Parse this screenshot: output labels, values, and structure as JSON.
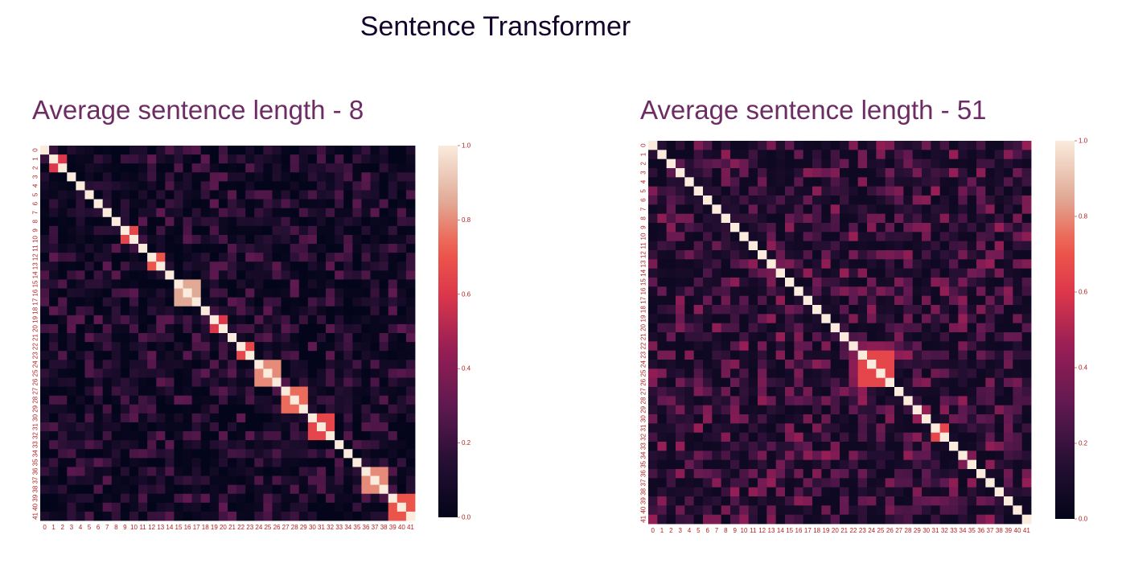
{
  "title": "Sentence Transformer",
  "chart_data": [
    {
      "type": "heatmap",
      "title": "Average sentence length - 8",
      "x_ticks": [
        "0",
        "1",
        "2",
        "3",
        "4",
        "5",
        "6",
        "7",
        "8",
        "9",
        "10",
        "11",
        "12",
        "13",
        "14",
        "15",
        "16",
        "17",
        "18",
        "19",
        "20",
        "21",
        "22",
        "23",
        "24",
        "25",
        "26",
        "27",
        "28",
        "29",
        "30",
        "31",
        "32",
        "33",
        "34",
        "35",
        "36",
        "37",
        "38",
        "39",
        "40",
        "41"
      ],
      "y_ticks": [
        "0",
        "1",
        "2",
        "3",
        "4",
        "5",
        "6",
        "7",
        "8",
        "9",
        "10",
        "11",
        "12",
        "13",
        "14",
        "15",
        "16",
        "17",
        "18",
        "19",
        "20",
        "21",
        "22",
        "23",
        "24",
        "25",
        "26",
        "27",
        "28",
        "29",
        "30",
        "31",
        "32",
        "33",
        "34",
        "35",
        "36",
        "37",
        "38",
        "39",
        "40",
        "41"
      ],
      "colorbar": {
        "min": 0.0,
        "max": 1.0,
        "ticks": [
          "0.0",
          "0.2",
          "0.4",
          "0.6",
          "0.8",
          "1.0"
        ]
      },
      "colormap": "rocket",
      "diagonal": 1.0,
      "off_diagonal_range": [
        0.0,
        0.3
      ],
      "high_similarity_blocks": [
        {
          "rows": [
            1,
            2
          ],
          "value": 0.6
        },
        {
          "rows": [
            9,
            10
          ],
          "value": 0.65
        },
        {
          "rows": [
            12,
            13
          ],
          "value": 0.7
        },
        {
          "rows": [
            15,
            17
          ],
          "value": 0.85
        },
        {
          "rows": [
            19,
            20
          ],
          "value": 0.6
        },
        {
          "rows": [
            22,
            23
          ],
          "value": 0.65
        },
        {
          "rows": [
            24,
            26
          ],
          "value": 0.8
        },
        {
          "rows": [
            27,
            29
          ],
          "value": 0.75
        },
        {
          "rows": [
            30,
            32
          ],
          "value": 0.65
        },
        {
          "rows": [
            36,
            38
          ],
          "value": 0.8
        },
        {
          "rows": [
            39,
            41
          ],
          "value": 0.7
        }
      ]
    },
    {
      "type": "heatmap",
      "title": "Average sentence length - 51",
      "x_ticks": [
        "0",
        "1",
        "2",
        "3",
        "4",
        "5",
        "6",
        "7",
        "8",
        "9",
        "10",
        "11",
        "12",
        "13",
        "14",
        "15",
        "16",
        "17",
        "18",
        "19",
        "20",
        "21",
        "22",
        "23",
        "24",
        "25",
        "26",
        "27",
        "28",
        "29",
        "30",
        "31",
        "32",
        "33",
        "34",
        "35",
        "36",
        "37",
        "38",
        "39",
        "40",
        "41"
      ],
      "y_ticks": [
        "0",
        "1",
        "2",
        "3",
        "4",
        "5",
        "6",
        "7",
        "8",
        "9",
        "10",
        "11",
        "12",
        "13",
        "14",
        "15",
        "16",
        "17",
        "18",
        "19",
        "20",
        "21",
        "22",
        "23",
        "24",
        "25",
        "26",
        "27",
        "28",
        "29",
        "30",
        "31",
        "32",
        "33",
        "34",
        "35",
        "36",
        "37",
        "38",
        "39",
        "40",
        "41"
      ],
      "colorbar": {
        "min": 0.0,
        "max": 1.0,
        "ticks": [
          "0.0",
          "0.2",
          "0.4",
          "0.6",
          "0.8",
          "1.0"
        ]
      },
      "colormap": "rocket",
      "diagonal": 1.0,
      "off_diagonal_range": [
        0.05,
        0.45
      ],
      "high_similarity_blocks": [
        {
          "rows": [
            23,
            26
          ],
          "value": 0.65
        },
        {
          "rows": [
            31,
            32
          ],
          "value": 0.65
        }
      ]
    }
  ]
}
